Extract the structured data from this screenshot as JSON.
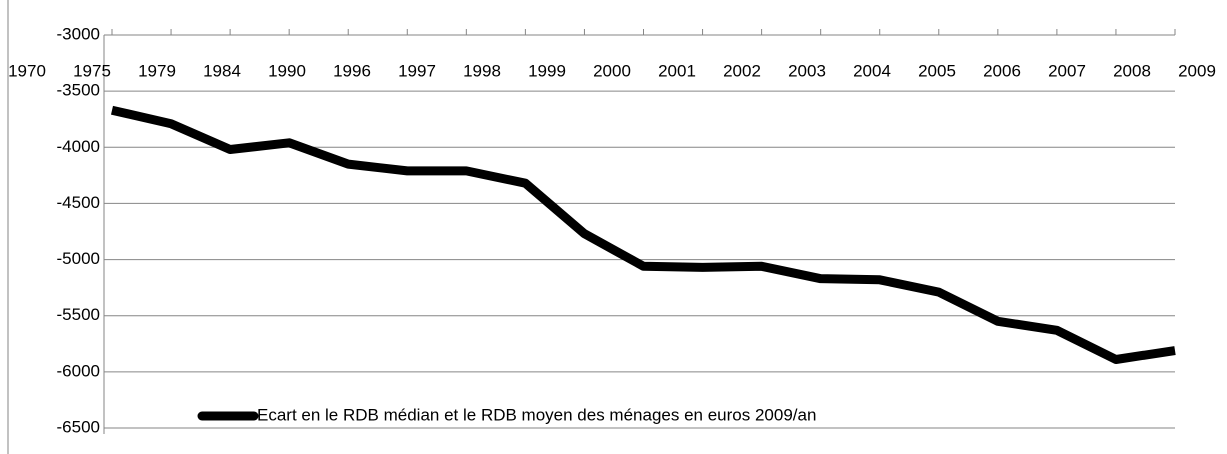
{
  "chart_data": {
    "type": "line",
    "categories": [
      "1970",
      "1975",
      "1979",
      "1984",
      "1990",
      "1996",
      "1997",
      "1998",
      "1999",
      "2000",
      "2001",
      "2002",
      "2003",
      "2004",
      "2005",
      "2006",
      "2007",
      "2008",
      "2009"
    ],
    "series": [
      {
        "name": "Ecart en le RDB médian et le RDB moyen des ménages en euros 2009/an",
        "color": "#000000",
        "values": [
          -3670,
          -3790,
          -4020,
          -3960,
          -4150,
          -4210,
          -4210,
          -4320,
          -4770,
          -5060,
          -5070,
          -5060,
          -5170,
          -5180,
          -5290,
          -5550,
          -5630,
          -5890,
          -5810
        ]
      }
    ],
    "ylim": [
      -6500,
      -3000
    ],
    "yticks": [
      -6500,
      -6000,
      -5500,
      -5000,
      -4500,
      -4000,
      -3500,
      -3000
    ],
    "grid": true,
    "legend": "bottom"
  }
}
